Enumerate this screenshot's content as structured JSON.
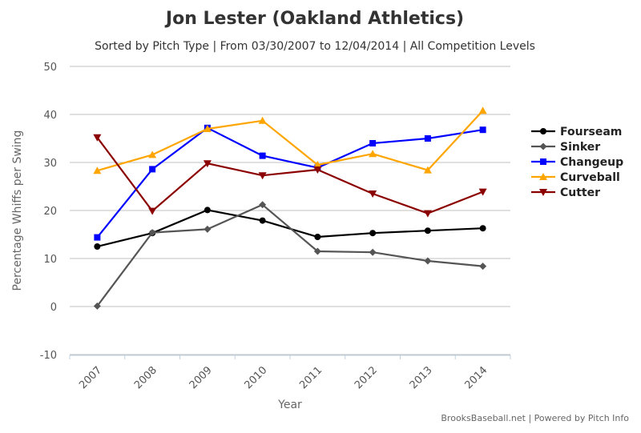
{
  "chart_data": {
    "type": "line",
    "title": "Jon Lester (Oakland Athletics)",
    "subtitle": "Sorted by Pitch Type | From 03/30/2007 to 12/04/2014 | All Competition Levels",
    "xlabel": "Year",
    "ylabel": "Percentage Whiffs per Swing",
    "categories": [
      "2007",
      "2008",
      "2009",
      "2010",
      "2011",
      "2012",
      "2013",
      "2014"
    ],
    "ylim": [
      -10,
      50
    ],
    "yticks": [
      -10,
      0,
      10,
      20,
      30,
      40,
      50
    ],
    "grid": true,
    "legend_position": "right",
    "series": [
      {
        "name": "Fourseam",
        "color": "#000000",
        "marker": "circle",
        "values": [
          12.5,
          15.3,
          20.1,
          17.9,
          14.5,
          15.3,
          15.8,
          16.3
        ]
      },
      {
        "name": "Sinker",
        "color": "#555555",
        "marker": "diamond",
        "values": [
          0.1,
          15.4,
          16.1,
          21.2,
          11.5,
          11.3,
          9.5,
          8.4
        ]
      },
      {
        "name": "Changeup",
        "color": "#0000ff",
        "marker": "square",
        "values": [
          14.4,
          28.6,
          37.2,
          31.4,
          28.9,
          34.0,
          35.0,
          36.8
        ]
      },
      {
        "name": "Curveball",
        "color": "#ffa500",
        "marker": "triangle",
        "values": [
          28.3,
          31.6,
          37.0,
          38.7,
          29.5,
          31.8,
          28.4,
          40.8
        ]
      },
      {
        "name": "Cutter",
        "color": "#8b0000",
        "marker": "triangle-down",
        "values": [
          35.2,
          19.9,
          29.8,
          27.3,
          28.5,
          23.5,
          19.4,
          23.9
        ]
      }
    ]
  },
  "credits": "BrooksBaseball.net | Powered by Pitch Info"
}
